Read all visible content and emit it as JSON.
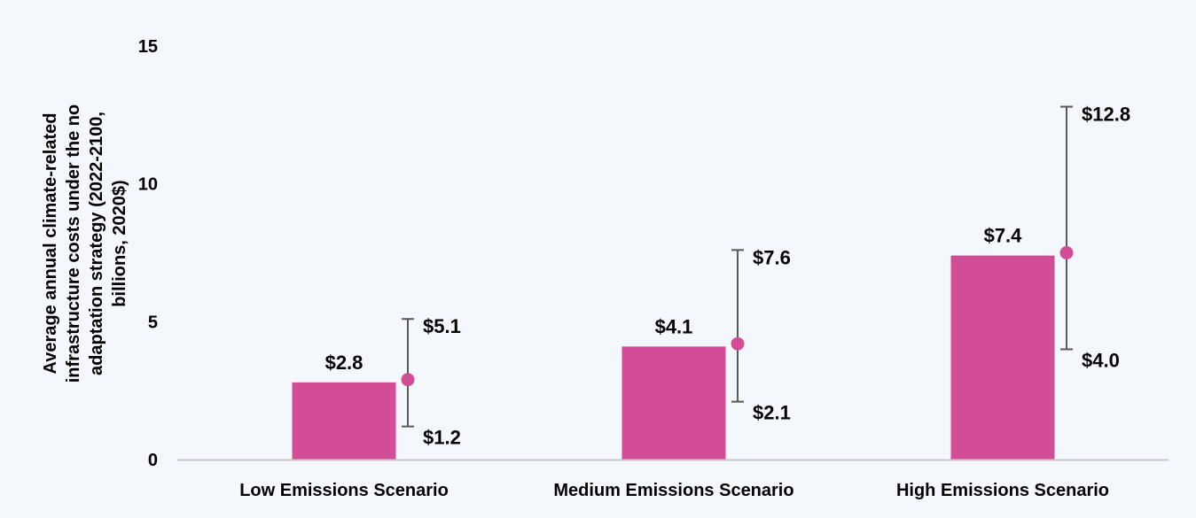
{
  "chart_data": {
    "type": "bar",
    "ylabel_lines": [
      "Average annual climate-related",
      "infrastructure costs under the no",
      "adaptation strategy  (2022-2100,",
      "billions, 2020$)"
    ],
    "ylim": [
      0,
      15
    ],
    "yticks": [
      "0",
      "5",
      "10",
      "15"
    ],
    "grid": false,
    "categories": [
      "Low Emissions Scenario",
      "Medium Emissions Scenario",
      "High Emissions Scenario"
    ],
    "values": [
      2.8,
      4.1,
      7.4
    ],
    "value_labels": [
      "$2.8",
      "$4.1",
      "$7.4"
    ],
    "points": [
      2.9,
      4.2,
      7.5
    ],
    "range_low": [
      1.2,
      2.1,
      4.0
    ],
    "range_high": [
      5.1,
      7.6,
      12.8
    ],
    "range_low_labels": [
      "$1.2",
      "$2.1",
      "$4.0"
    ],
    "range_high_labels": [
      "$5.1",
      "$7.6",
      "$12.8"
    ],
    "colors": {
      "bar": "#d34d96",
      "point": "#d34d96",
      "whisker": "#595959",
      "axis": "#c8c8c8",
      "background": "#f4f8fc"
    }
  }
}
